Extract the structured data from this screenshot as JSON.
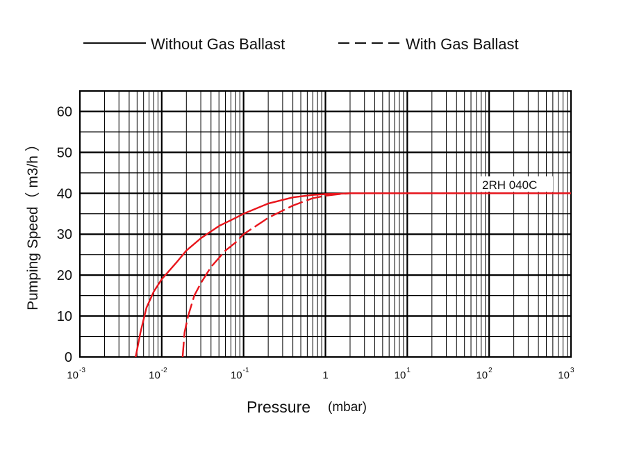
{
  "chart_data": {
    "type": "line",
    "xlabel": "Pressure",
    "xlabel_unit": "(mbar)",
    "ylabel": "Pumping Speed（ m3/h ）",
    "x_scale": "log",
    "xlim": [
      0.001,
      1000
    ],
    "ylim": [
      0,
      65
    ],
    "grid": true,
    "legend_position": "top",
    "x_ticks": [
      {
        "value": 0.001,
        "base": "10",
        "exp": "-3"
      },
      {
        "value": 0.01,
        "base": "10",
        "exp": "-2"
      },
      {
        "value": 0.1,
        "base": "10",
        "exp": "-1"
      },
      {
        "value": 1,
        "base": "1",
        "exp": ""
      },
      {
        "value": 10,
        "base": "10",
        "exp": "1"
      },
      {
        "value": 100,
        "base": "10",
        "exp": "2"
      },
      {
        "value": 1000,
        "base": "10",
        "exp": "3"
      }
    ],
    "y_ticks": [
      0,
      10,
      20,
      30,
      40,
      50,
      60
    ],
    "annotation": "2RH 040C",
    "series": [
      {
        "name": "Without Gas Ballast",
        "style": "solid",
        "color": "#e8141b",
        "x": [
          0.0048,
          0.0055,
          0.0065,
          0.008,
          0.01,
          0.015,
          0.02,
          0.03,
          0.05,
          0.08,
          0.1,
          0.2,
          0.4,
          0.7,
          1,
          1.5,
          2,
          5,
          10,
          100,
          1000
        ],
        "y": [
          0,
          6,
          12,
          16,
          19,
          23,
          26,
          29,
          32,
          34,
          35,
          37.5,
          39,
          39.6,
          39.8,
          39.9,
          40,
          40,
          40,
          40,
          40
        ]
      },
      {
        "name": "With Gas Ballast",
        "style": "dashed",
        "color": "#e8141b",
        "x": [
          0.018,
          0.019,
          0.021,
          0.025,
          0.03,
          0.04,
          0.06,
          0.08,
          0.1,
          0.2,
          0.4,
          0.7,
          1,
          1.5,
          2,
          5,
          10,
          100,
          1000
        ],
        "y": [
          0,
          6,
          10,
          15,
          18,
          22,
          26,
          28,
          30,
          34,
          37,
          38.8,
          39.4,
          39.8,
          40,
          40,
          40,
          40,
          40
        ]
      }
    ]
  },
  "legend": {
    "items": [
      {
        "label": "Without Gas Ballast",
        "style": "solid"
      },
      {
        "label": "With Gas Ballast",
        "style": "dashed"
      }
    ]
  },
  "colors": {
    "curve": "#e8141b",
    "grid": "#000000",
    "text": "#111111"
  }
}
